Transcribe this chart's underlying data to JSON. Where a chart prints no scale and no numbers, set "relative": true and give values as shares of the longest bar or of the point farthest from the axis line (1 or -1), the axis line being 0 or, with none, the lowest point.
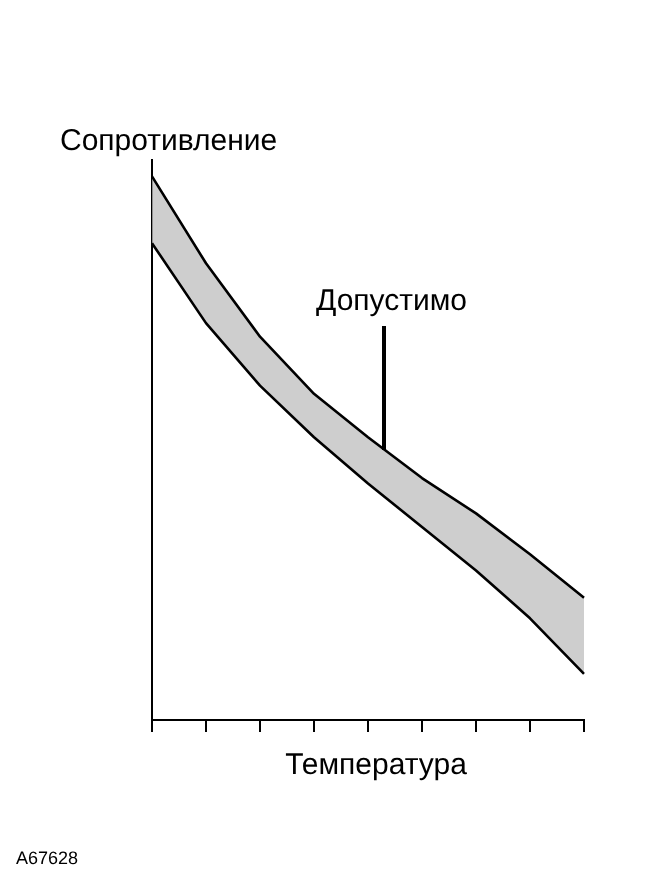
{
  "chart_data": {
    "type": "line",
    "relative": true,
    "ylabel": "Сопротивление",
    "xlabel": "Температура",
    "categories": [
      null,
      null,
      null,
      null,
      null,
      null,
      null,
      null,
      null
    ],
    "series": [
      {
        "type": "line",
        "color": "#000000",
        "values": [
          1,
          0.84,
          0.705,
          0.6,
          0.52,
          0.445,
          0.38,
          0.305,
          0.225
        ],
        "lower": [
          0.877,
          0.73,
          0.615,
          0.52,
          0.435,
          0.355,
          0.275,
          0.187,
          0.085
        ],
        "upper": [
          1,
          0.84,
          0.705,
          0.6,
          0.52,
          0.445,
          0.38,
          0.305,
          0.225
        ]
      },
      {
        "type": "line",
        "color": "#000000",
        "values": [
          0.877,
          0.73,
          0.615,
          0.52,
          0.435,
          0.355,
          0.275,
          0.187,
          0.085
        ]
      }
    ],
    "annotations": [
      "Допустимо",
      "A67628"
    ],
    "grid": false,
    "legend": false,
    "tick_labels": false,
    "marker": "none",
    "line_style": "solid"
  }
}
